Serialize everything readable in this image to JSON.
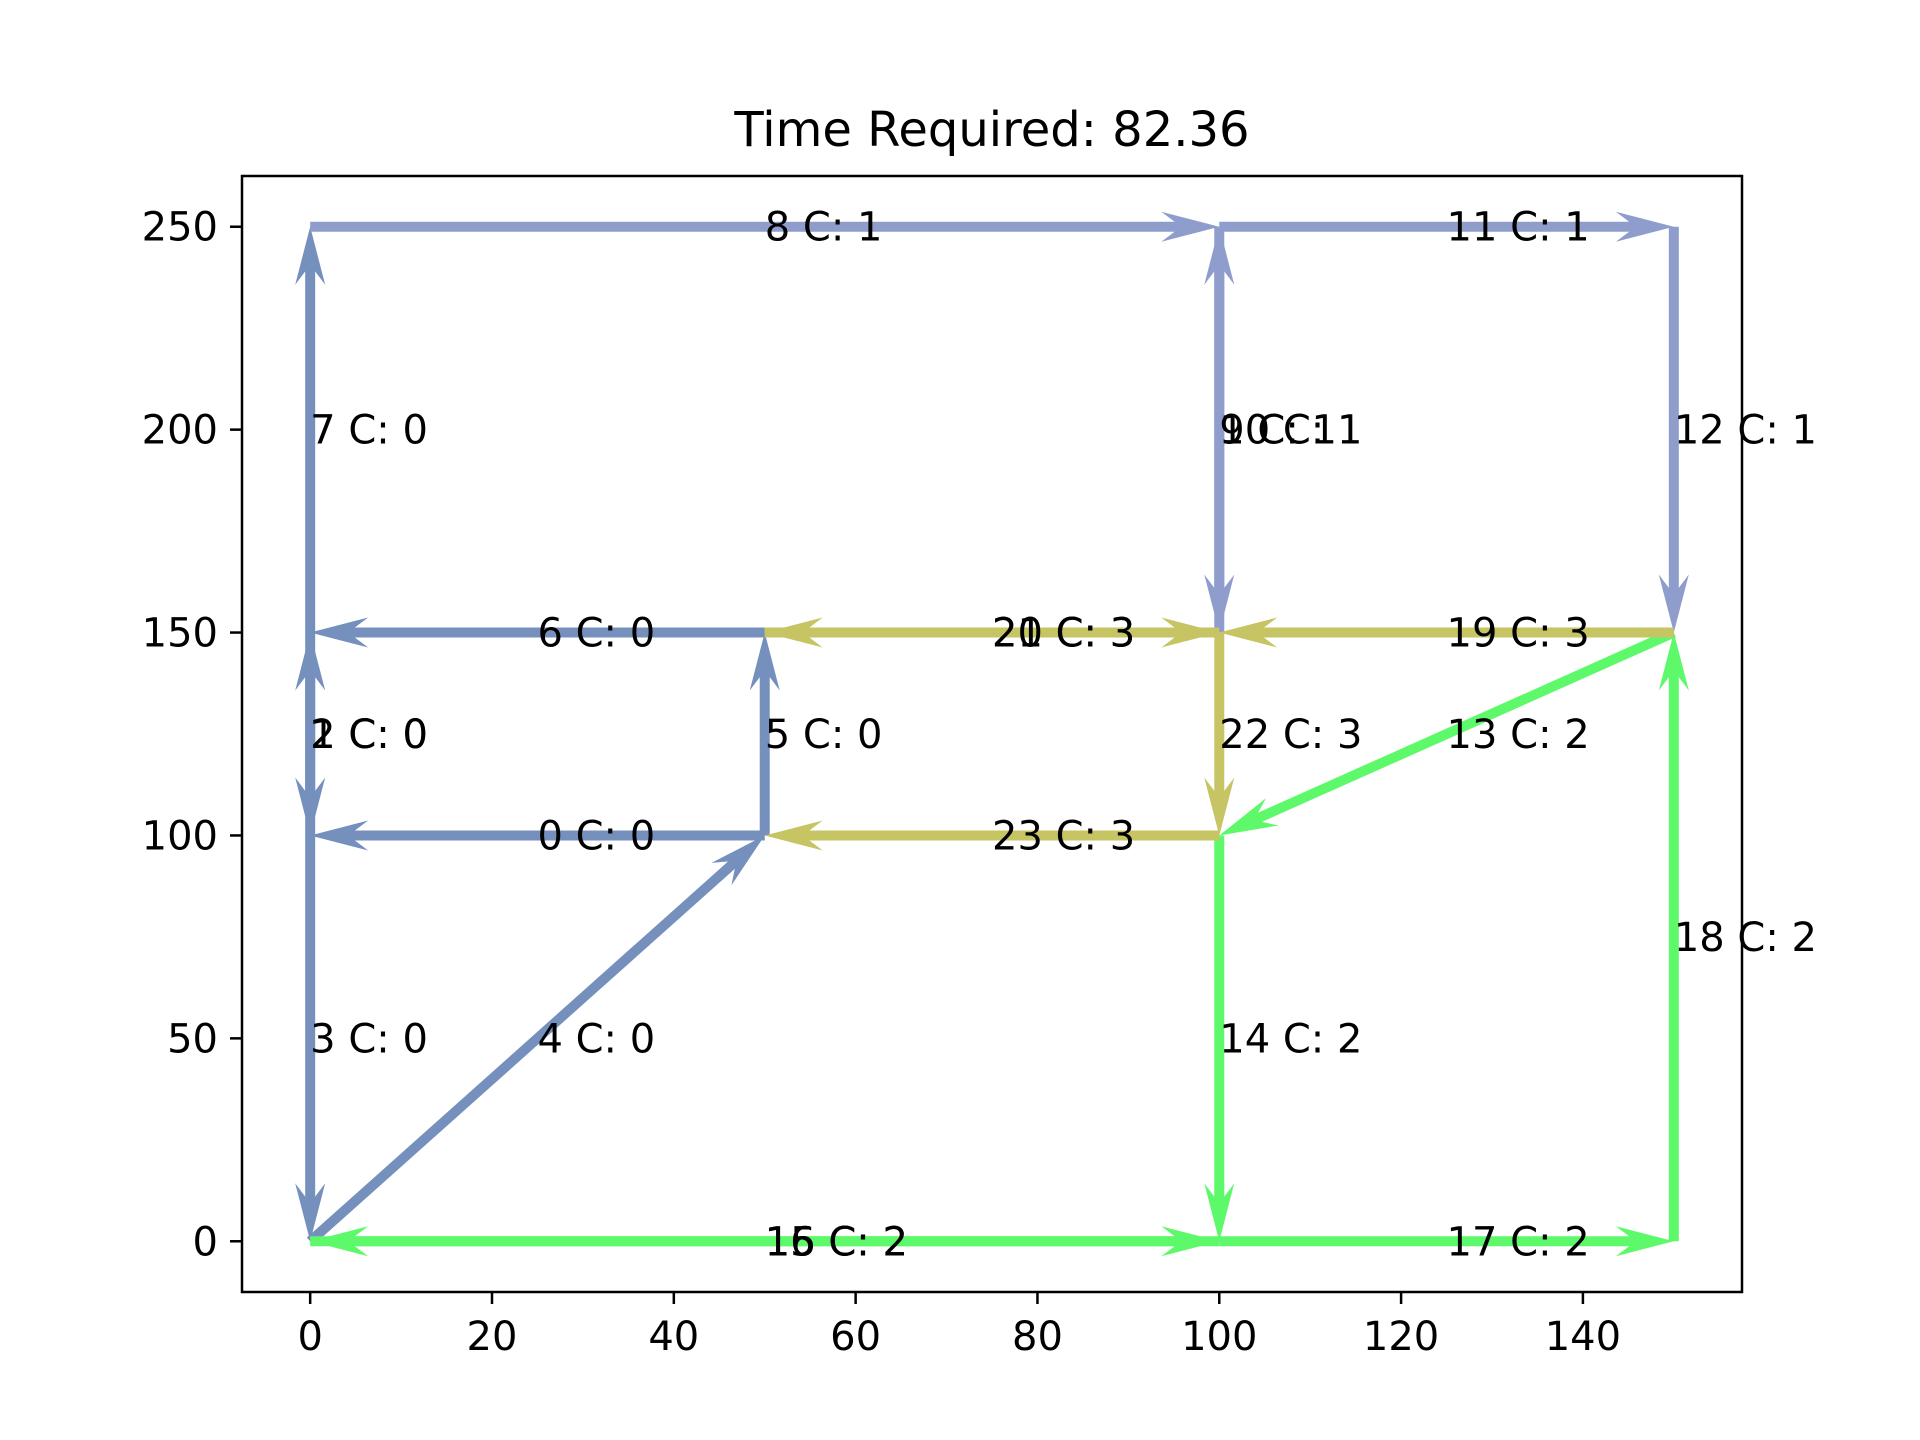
{
  "chart_data": {
    "type": "network",
    "title": "Time Required: 82.36",
    "xlabel": "",
    "ylabel": "",
    "xlim": [
      -7.5,
      157.5
    ],
    "ylim": [
      -12.5,
      262.5
    ],
    "x_ticks": [
      0,
      20,
      40,
      60,
      80,
      100,
      120,
      140
    ],
    "y_ticks": [
      0,
      50,
      100,
      150,
      200,
      250
    ],
    "grid": false,
    "colors": {
      "C0": "#7590bd",
      "C1": "#8e9dcb",
      "C2": "#c6c463",
      "C3": "#5ef96a"
    },
    "edges": [
      {
        "label": "0 C: 0",
        "from": [
          50,
          100
        ],
        "to": [
          0,
          100
        ],
        "color": "C0"
      },
      {
        "label": "1 C: 0",
        "from": [
          0,
          100
        ],
        "to": [
          0,
          150
        ],
        "color": "C0"
      },
      {
        "label": "2 C: 0",
        "from": [
          0,
          150
        ],
        "to": [
          0,
          100
        ],
        "color": "C0"
      },
      {
        "label": "3 C: 0",
        "from": [
          0,
          100
        ],
        "to": [
          0,
          0
        ],
        "color": "C0"
      },
      {
        "label": "4 C: 0",
        "from": [
          0,
          0
        ],
        "to": [
          50,
          100
        ],
        "color": "C0"
      },
      {
        "label": "5 C: 0",
        "from": [
          50,
          100
        ],
        "to": [
          50,
          150
        ],
        "color": "C0"
      },
      {
        "label": "6 C: 0",
        "from": [
          50,
          150
        ],
        "to": [
          0,
          150
        ],
        "color": "C0"
      },
      {
        "label": "7 C: 0",
        "from": [
          0,
          150
        ],
        "to": [
          0,
          250
        ],
        "color": "C0"
      },
      {
        "label": "8 C: 1",
        "from": [
          0,
          250
        ],
        "to": [
          100,
          250
        ],
        "color": "C1"
      },
      {
        "label": "9 C: 1",
        "from": [
          100,
          250
        ],
        "to": [
          100,
          150
        ],
        "color": "C1"
      },
      {
        "label": "10 C: 1",
        "from": [
          100,
          150
        ],
        "to": [
          100,
          250
        ],
        "color": "C1"
      },
      {
        "label": "11 C: 1",
        "from": [
          100,
          250
        ],
        "to": [
          150,
          250
        ],
        "color": "C1"
      },
      {
        "label": "12 C: 1",
        "from": [
          150,
          250
        ],
        "to": [
          150,
          150
        ],
        "color": "C1"
      },
      {
        "label": "13 C: 2",
        "from": [
          150,
          150
        ],
        "to": [
          100,
          100
        ],
        "color": "C3"
      },
      {
        "label": "14 C: 2",
        "from": [
          100,
          100
        ],
        "to": [
          100,
          0
        ],
        "color": "C3"
      },
      {
        "label": "15 C: 2",
        "from": [
          0,
          0
        ],
        "to": [
          100,
          0
        ],
        "color": "C3"
      },
      {
        "label": "16 C: 2",
        "from": [
          100,
          0
        ],
        "to": [
          0,
          0
        ],
        "color": "C3"
      },
      {
        "label": "17 C: 2",
        "from": [
          100,
          0
        ],
        "to": [
          150,
          0
        ],
        "color": "C3"
      },
      {
        "label": "18 C: 2",
        "from": [
          150,
          0
        ],
        "to": [
          150,
          150
        ],
        "color": "C3"
      },
      {
        "label": "19 C: 3",
        "from": [
          150,
          150
        ],
        "to": [
          100,
          150
        ],
        "color": "C2"
      },
      {
        "label": "20 C: 3",
        "from": [
          100,
          150
        ],
        "to": [
          50,
          150
        ],
        "color": "C2"
      },
      {
        "label": "21 C: 3",
        "from": [
          50,
          150
        ],
        "to": [
          100,
          150
        ],
        "color": "C2"
      },
      {
        "label": "22 C: 3",
        "from": [
          100,
          150
        ],
        "to": [
          100,
          100
        ],
        "color": "C2"
      },
      {
        "label": "23 C: 3",
        "from": [
          100,
          100
        ],
        "to": [
          50,
          100
        ],
        "color": "C2"
      }
    ]
  }
}
